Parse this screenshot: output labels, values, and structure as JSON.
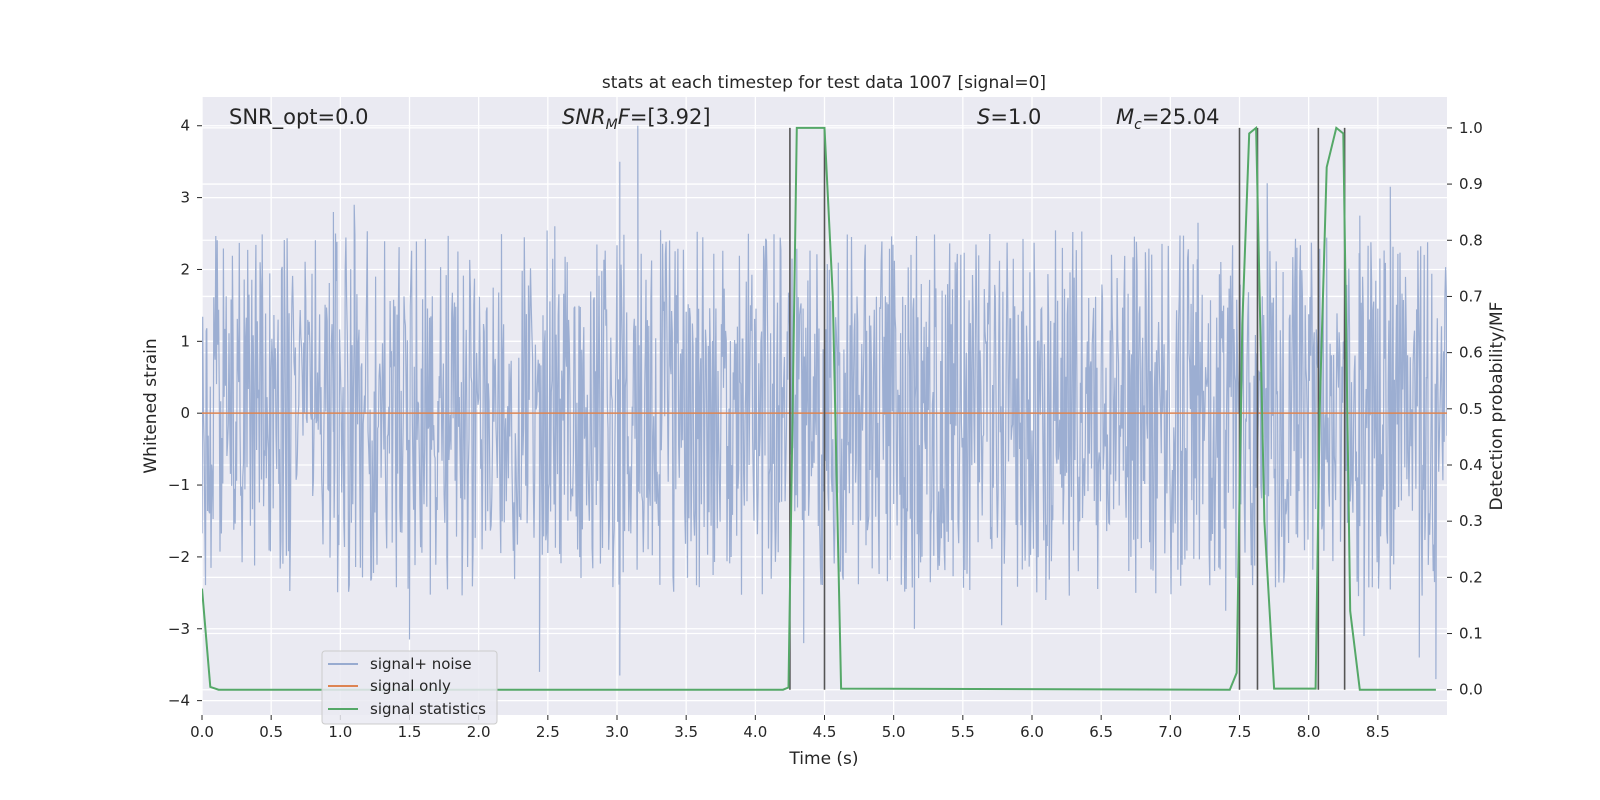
{
  "chart_data": {
    "type": "line",
    "title": "stats at each timestep for test data 1007 [signal=0]",
    "xlabel": "Time (s)",
    "ylabel_left": "Whitened strain",
    "ylabel_right": "Detection probability/MF",
    "xlim": [
      0.0,
      9.0
    ],
    "ylim_left": [
      -4.2,
      4.4
    ],
    "ylim_right": [
      -0.045,
      1.055
    ],
    "x_ticks": [
      0.0,
      0.5,
      1.0,
      1.5,
      2.0,
      2.5,
      3.0,
      3.5,
      4.0,
      4.5,
      5.0,
      5.5,
      6.0,
      6.5,
      7.0,
      7.5,
      8.0,
      8.5
    ],
    "x_tick_labels": [
      "0.0",
      "0.5",
      "1.0",
      "1.5",
      "2.0",
      "2.5",
      "3.0",
      "3.5",
      "4.0",
      "4.5",
      "5.0",
      "5.5",
      "6.0",
      "6.5",
      "7.0",
      "7.5",
      "8.0",
      "8.5"
    ],
    "y_left_ticks": [
      4,
      3,
      2,
      1,
      0,
      -1,
      -2,
      -3,
      -4
    ],
    "y_left_tick_labels": [
      "4",
      "3",
      "2",
      "1",
      "0",
      "−1",
      "−2",
      "−3",
      "−4"
    ],
    "y_right_ticks": [
      1.0,
      0.9,
      0.8,
      0.7,
      0.6,
      0.5,
      0.4,
      0.3,
      0.2,
      0.1,
      0.0
    ],
    "y_right_tick_labels": [
      "1.0",
      "0.9",
      "0.8",
      "0.7",
      "0.6",
      "0.5",
      "0.4",
      "0.3",
      "0.2",
      "0.1",
      "0.0"
    ],
    "annotations": {
      "snr_opt": "SNR_opt=0.0",
      "snr_mf_main": "SNR",
      "snr_mf_sub": "M",
      "snr_mf_rest": "F",
      "snr_mf_value": "=[3.92]",
      "s_var": "S",
      "s_value": "=1.0",
      "mc_var": "M",
      "mc_sub": "c",
      "mc_value": "=25.04"
    },
    "legend": {
      "placement": "lower-left",
      "entries": [
        "signal+ noise",
        "signal only",
        "signal statistics"
      ]
    },
    "colors": {
      "background": "#eaeaf2",
      "grid": "#ffffff",
      "signal_noise": "#98abd0",
      "signal_only": "#dd8452",
      "signal_statistics": "#55a868",
      "vlines": "#555555"
    },
    "grid": true,
    "series": [
      {
        "name": "signal+ noise",
        "axis": "left",
        "description_values": "dense noise approx uniform in [-1.7, 1.7] with spikes",
        "spikes": [
          [
            3.15,
            4.0
          ],
          [
            3.02,
            3.5
          ],
          [
            2.44,
            -3.6
          ],
          [
            3.02,
            -3.65
          ],
          [
            1.5,
            -3.15
          ],
          [
            5.78,
            -2.95
          ],
          [
            5.15,
            -3.0
          ],
          [
            7.7,
            3.2
          ],
          [
            8.8,
            -3.4
          ],
          [
            8.92,
            -3.7
          ],
          [
            8.59,
            3.15
          ],
          [
            1.1,
            2.9
          ],
          [
            0.95,
            2.8
          ],
          [
            4.35,
            -3.2
          ],
          [
            8.37,
            2.75
          ],
          [
            7.2,
            2.65
          ],
          [
            6.1,
            -2.6
          ],
          [
            2.55,
            2.6
          ],
          [
            8.4,
            -3.1
          ],
          [
            7.4,
            -2.75
          ]
        ]
      },
      {
        "name": "signal only",
        "axis": "left",
        "x": [
          0.0,
          9.0
        ],
        "values": [
          0.0,
          0.0
        ]
      },
      {
        "name": "signal statistics",
        "axis": "right",
        "x": [
          0.0,
          0.06,
          0.12,
          4.2,
          4.24,
          4.3,
          4.43,
          4.5,
          4.56,
          4.62,
          7.43,
          7.48,
          7.52,
          7.57,
          7.62,
          7.68,
          7.75,
          8.05,
          8.08,
          8.13,
          8.2,
          8.25,
          8.3,
          8.37,
          8.92
        ],
        "values": [
          0.18,
          0.005,
          0.0,
          0.0,
          0.004,
          1.0,
          1.0,
          1.0,
          0.7,
          0.002,
          0.0,
          0.03,
          0.65,
          0.99,
          1.0,
          0.3,
          0.002,
          0.002,
          0.5,
          0.93,
          1.0,
          0.99,
          0.14,
          0.0,
          0.0
        ]
      }
    ],
    "vlines": [
      {
        "x": 4.25,
        "ymin": 0.0,
        "ymax": 1.0
      },
      {
        "x": 4.5,
        "ymin": 0.0,
        "ymax": 1.0
      },
      {
        "x": 7.5,
        "ymin": 0.0,
        "ymax": 1.0
      },
      {
        "x": 7.63,
        "ymin": 0.0,
        "ymax": 1.0
      },
      {
        "x": 8.07,
        "ymin": 0.0,
        "ymax": 1.0
      },
      {
        "x": 8.26,
        "ymin": 0.0,
        "ymax": 1.0
      }
    ]
  }
}
